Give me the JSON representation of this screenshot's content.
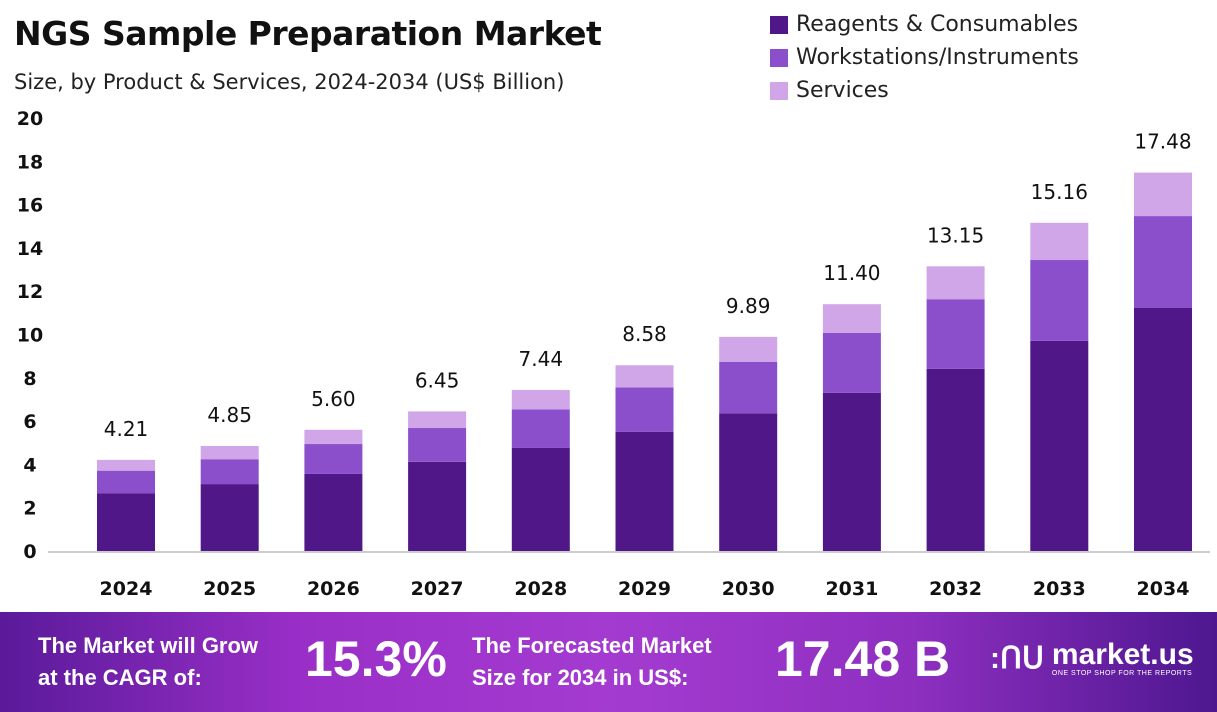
{
  "chart_data": {
    "type": "bar",
    "stacked": true,
    "title": "NGS Sample Preparation Market",
    "subtitle": "Size, by Product & Services, 2024-2034 (US$ Billion)",
    "categories": [
      "2024",
      "2025",
      "2026",
      "2027",
      "2028",
      "2029",
      "2030",
      "2031",
      "2032",
      "2033",
      "2034"
    ],
    "series": [
      {
        "name": "Reagents & Consumables",
        "color": "#4f1787",
        "values": [
          2.67,
          3.09,
          3.56,
          4.12,
          4.76,
          5.51,
          6.36,
          7.31,
          8.41,
          9.71,
          11.24
        ]
      },
      {
        "name": "Workstations/Instruments",
        "color": "#8b4fcb",
        "values": [
          1.04,
          1.15,
          1.38,
          1.56,
          1.78,
          2.05,
          2.37,
          2.77,
          3.22,
          3.73,
          4.23
        ]
      },
      {
        "name": "Services",
        "color": "#d0a6e8",
        "values": [
          0.5,
          0.61,
          0.66,
          0.77,
          0.9,
          1.02,
          1.16,
          1.32,
          1.52,
          1.72,
          2.01
        ]
      }
    ],
    "totals": [
      "4.21",
      "4.85",
      "5.60",
      "6.45",
      "7.44",
      "8.58",
      "9.89",
      "11.40",
      "13.15",
      "15.16",
      "17.48"
    ],
    "ylim": [
      0,
      20
    ],
    "yticks": [
      0,
      2,
      4,
      6,
      8,
      10,
      12,
      14,
      16,
      18,
      20
    ],
    "grid": false,
    "legend": "top-right"
  },
  "footer": {
    "cagr_text_1": "The Market will Grow",
    "cagr_text_2": "at the CAGR of:",
    "cagr_value": "15.3%",
    "forecast_text_1": "The Forecasted Market",
    "forecast_text_2": "Size for 2034 in US$:",
    "forecast_value": "17.48 B",
    "logo_name": "market.us",
    "logo_tagline": "ONE STOP SHOP FOR THE REPORTS"
  }
}
